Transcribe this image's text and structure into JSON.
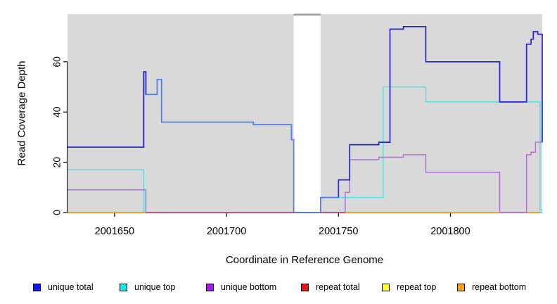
{
  "chart_data": {
    "type": "line",
    "subtype": "step-coverage",
    "title": "",
    "xlabel": "Coordinate in Reference Genome",
    "ylabel": "Read Coverage Depth",
    "xlim": [
      2001629,
      2001841
    ],
    "ylim": [
      0,
      79
    ],
    "x_ticks": [
      "2001650",
      "2001700",
      "2001750",
      "2001800"
    ],
    "x_tick_values": [
      2001650,
      2001700,
      2001750,
      2001800
    ],
    "y_ticks": [
      "0",
      "20",
      "40",
      "60"
    ],
    "y_tick_values": [
      0,
      20,
      40,
      60
    ],
    "grid": false,
    "plot_bg_color": "#d9d9d9",
    "gap_band": {
      "x1": 2001730,
      "x2": 2001742,
      "fill": "#ffffff",
      "cap_color": "#9a9a9a"
    },
    "legend_position": "bottom",
    "legend": [
      {
        "label": "unique total",
        "color": "#1515e8"
      },
      {
        "label": "unique top",
        "color": "#00eeee"
      },
      {
        "label": "unique bottom",
        "color": "#9f1fdd"
      },
      {
        "label": "repeat total",
        "color": "#ee1111"
      },
      {
        "label": "repeat top",
        "color": "#ffff33"
      },
      {
        "label": "repeat bottom",
        "color": "#ffa200"
      }
    ],
    "legend_x_offsets": [
      47,
      170,
      293,
      428,
      543,
      650
    ],
    "series": [
      {
        "name": "repeat top (zero line)",
        "color": "#ffff33",
        "width": 1.5,
        "points": [
          [
            2001629,
            0
          ],
          [
            2001841,
            0
          ]
        ]
      },
      {
        "name": "repeat total (zero line)",
        "color": "#cc4a6e",
        "width": 1.5,
        "points": [
          [
            2001629,
            0
          ],
          [
            2001841,
            0
          ]
        ]
      },
      {
        "name": "unique top",
        "color": "#4fe2ea",
        "width": 1.5,
        "points": [
          [
            2001629,
            17
          ],
          [
            2001663,
            17
          ],
          [
            2001663,
            0
          ],
          [
            2001742,
            0
          ],
          [
            2001742,
            6
          ],
          [
            2001770,
            6
          ],
          [
            2001770,
            50
          ],
          [
            2001789,
            50
          ],
          [
            2001789,
            44
          ],
          [
            2001840,
            44
          ],
          [
            2001840,
            1
          ],
          [
            2001841,
            1
          ]
        ]
      },
      {
        "name": "unique bottom",
        "color": "#b36fe0",
        "width": 1.5,
        "points": [
          [
            2001629,
            9
          ],
          [
            2001664,
            9
          ],
          [
            2001664,
            0
          ],
          [
            2001753,
            0
          ],
          [
            2001753,
            8
          ],
          [
            2001755,
            8
          ],
          [
            2001755,
            21
          ],
          [
            2001768,
            21
          ],
          [
            2001768,
            22
          ],
          [
            2001779,
            22
          ],
          [
            2001779,
            23
          ],
          [
            2001789,
            23
          ],
          [
            2001789,
            16
          ],
          [
            2001822,
            16
          ],
          [
            2001822,
            0
          ],
          [
            2001834,
            0
          ],
          [
            2001834,
            23
          ],
          [
            2001836,
            23
          ],
          [
            2001836,
            24
          ],
          [
            2001838,
            24
          ],
          [
            2001838,
            28
          ],
          [
            2001841,
            28
          ]
        ]
      },
      {
        "name": "unique total (light segment)",
        "color": "#4b7bf5",
        "width": 1.7,
        "points": [
          [
            2001629,
            26
          ],
          [
            2001663,
            26
          ],
          [
            2001663,
            56
          ],
          [
            2001664,
            56
          ],
          [
            2001664,
            47
          ],
          [
            2001669,
            47
          ],
          [
            2001669,
            53
          ],
          [
            2001671,
            53
          ],
          [
            2001671,
            36
          ],
          [
            2001712,
            36
          ],
          [
            2001712,
            35
          ],
          [
            2001729,
            35
          ],
          [
            2001729,
            29
          ],
          [
            2001730,
            29
          ],
          [
            2001730,
            0
          ],
          [
            2001742,
            0
          ],
          [
            2001742,
            6
          ],
          [
            2001750,
            6
          ]
        ]
      },
      {
        "name": "unique total (dark segment A)",
        "color": "#2323d8",
        "width": 1.7,
        "points": [
          [
            2001629,
            26
          ],
          [
            2001663,
            26
          ],
          [
            2001663,
            56
          ],
          [
            2001664,
            56
          ],
          [
            2001664,
            47
          ]
        ]
      },
      {
        "name": "unique total (dark segment B)",
        "color": "#2323d8",
        "width": 1.7,
        "points": [
          [
            2001750,
            6
          ],
          [
            2001750,
            13
          ],
          [
            2001755,
            13
          ],
          [
            2001755,
            27
          ],
          [
            2001768,
            27
          ],
          [
            2001768,
            28
          ],
          [
            2001773,
            28
          ],
          [
            2001773,
            73
          ],
          [
            2001779,
            73
          ],
          [
            2001779,
            74
          ],
          [
            2001789,
            74
          ],
          [
            2001789,
            60
          ],
          [
            2001822,
            60
          ],
          [
            2001822,
            44
          ],
          [
            2001834,
            44
          ],
          [
            2001834,
            67
          ],
          [
            2001836,
            67
          ],
          [
            2001836,
            69
          ],
          [
            2001837,
            69
          ],
          [
            2001837,
            72
          ],
          [
            2001839,
            72
          ],
          [
            2001839,
            71
          ],
          [
            2001841,
            71
          ],
          [
            2001841,
            28
          ]
        ]
      }
    ],
    "baseline_segments": [
      {
        "x1": 2001629,
        "x2": 2001664,
        "color": "#ff9c1e"
      },
      {
        "x1": 2001664,
        "x2": 2001730,
        "color": "#cc4a6e"
      },
      {
        "x1": 2001730,
        "x2": 2001742,
        "color": "#4b7bf5"
      },
      {
        "x1": 2001742,
        "x2": 2001753,
        "color": "#cc4a6e"
      },
      {
        "x1": 2001753,
        "x2": 2001822,
        "color": "#ff9c1e"
      },
      {
        "x1": 2001822,
        "x2": 2001834,
        "color": "#b36fe0"
      },
      {
        "x1": 2001834,
        "x2": 2001840,
        "color": "#ff9c1e"
      },
      {
        "x1": 2001840,
        "x2": 2001841,
        "color": "#4fe2ea"
      }
    ]
  }
}
